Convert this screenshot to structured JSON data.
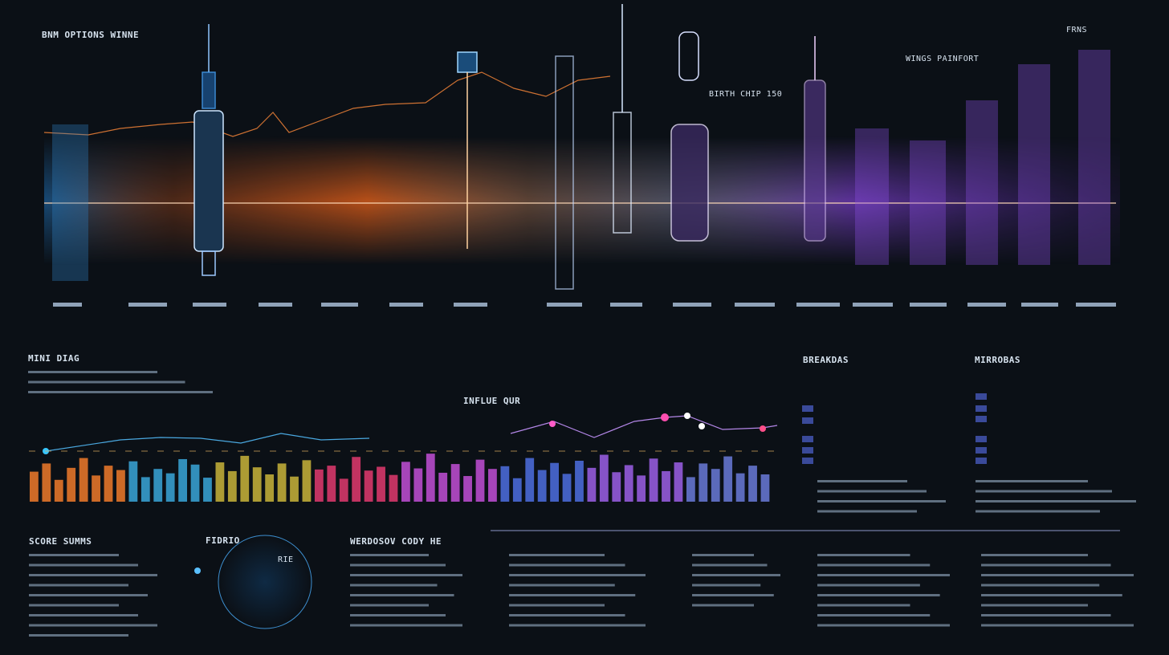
{
  "header": {
    "title": "BNM OPTIONS WINNE",
    "right_label": "FRNS",
    "mid_label": "BIRTH CHIP 150",
    "tag": "WINGS PAINFORT"
  },
  "sections": {
    "left_chart": "MINI DIAG",
    "mid_chart": "INFLUE QUR",
    "right_a": "BREAKDAS",
    "right_b": "MIRROBAS",
    "score": "SCORE SUMMS",
    "radial": "FIDRIO",
    "notes": "WERDOSOV CODY HE",
    "radial_inner": "RIE"
  },
  "bars": {
    "palette": [
      "#f07a2a",
      "#3aa6d8",
      "#c9b43a",
      "#e23a6e",
      "#c24fd6",
      "#4e6ee0",
      "#9c5fe6",
      "#6a7ad8"
    ],
    "values": [
      55,
      70,
      40,
      62,
      80,
      48,
      66,
      58,
      74,
      45,
      60,
      52,
      78,
      68,
      44,
      72,
      56,
      84,
      63,
      50,
      70,
      46,
      76,
      59,
      66,
      42,
      82,
      57,
      64,
      49,
      73,
      61,
      88,
      53,
      69,
      47,
      77,
      60,
      65,
      43,
      80,
      58,
      71,
      51,
      75,
      62,
      86,
      54,
      67,
      48,
      79,
      56,
      72,
      45,
      70,
      60,
      83,
      52,
      66,
      50
    ]
  }
}
